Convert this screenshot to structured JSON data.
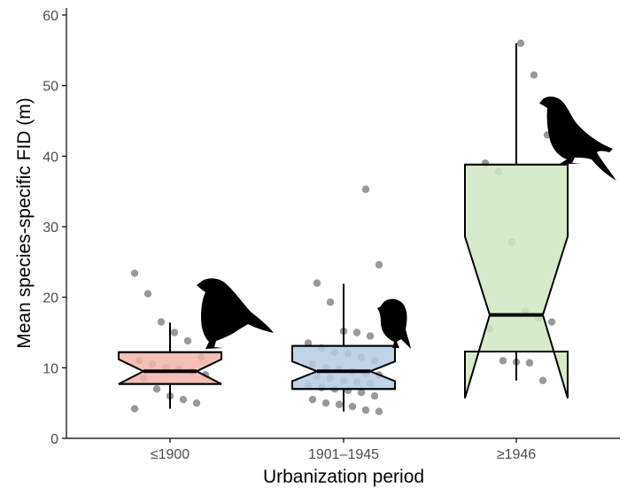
{
  "chart_data": {
    "type": "box",
    "xlabel": "Urbanization period",
    "ylabel": "Mean species-specific FID (m)",
    "ylim": [
      0,
      61
    ],
    "yticks": [
      0,
      10,
      20,
      30,
      40,
      50,
      60
    ],
    "notched": true,
    "grid": false,
    "categories": [
      "≤1900",
      "1901–1945",
      "≥1946"
    ],
    "boxes": [
      {
        "category": "≤1900",
        "q1": 7.7,
        "median": 9.5,
        "q3": 12.2,
        "whisker_low": 4.2,
        "whisker_high": 16.4,
        "notch_low": 7.7,
        "notch_high": 11.2,
        "fill": "#f2b5a8"
      },
      {
        "category": "1901–1945",
        "q1": 7.0,
        "median": 9.5,
        "q3": 13.1,
        "whisker_low": 3.8,
        "whisker_high": 21.9,
        "notch_low": 8.1,
        "notch_high": 10.9,
        "fill": "#b7cbe3"
      },
      {
        "category": "≥1946",
        "q1": 12.3,
        "median": 17.5,
        "q3": 38.8,
        "whisker_low": 8.2,
        "whisker_high": 56.0,
        "notch_low": 5.7,
        "notch_high": 28.6,
        "fill": "#cfe8bf"
      }
    ],
    "points": [
      {
        "category": "≤1900",
        "values": [
          23.4,
          20.5,
          16.5,
          15.0,
          13.8,
          11.5,
          11.0,
          10.5,
          10.0,
          9.8,
          9.5,
          9.0,
          8.5,
          7.0,
          6.0,
          5.5,
          5.0,
          4.2
        ]
      },
      {
        "category": "1901–1945",
        "values": [
          35.3,
          24.6,
          22.0,
          19.3,
          15.2,
          15.0,
          14.5,
          13.5,
          12.8,
          12.2,
          12.0,
          11.5,
          11.0,
          10.5,
          10.0,
          9.8,
          9.5,
          9.2,
          9.0,
          8.8,
          8.5,
          8.2,
          8.0,
          7.8,
          7.5,
          7.2,
          7.0,
          6.8,
          6.5,
          6.0,
          5.5,
          5.0,
          4.8,
          4.5,
          4.0,
          3.8
        ]
      },
      {
        "category": "≥1946",
        "values": [
          56.0,
          51.5,
          43.0,
          39.0,
          37.8,
          27.8,
          18.0,
          17.0,
          16.5,
          15.5,
          11.0,
          10.8,
          10.7,
          8.2
        ]
      }
    ],
    "silhouettes": [
      "sparrow-silhouette",
      "small-bird-silhouette",
      "pigeon-silhouette"
    ]
  }
}
